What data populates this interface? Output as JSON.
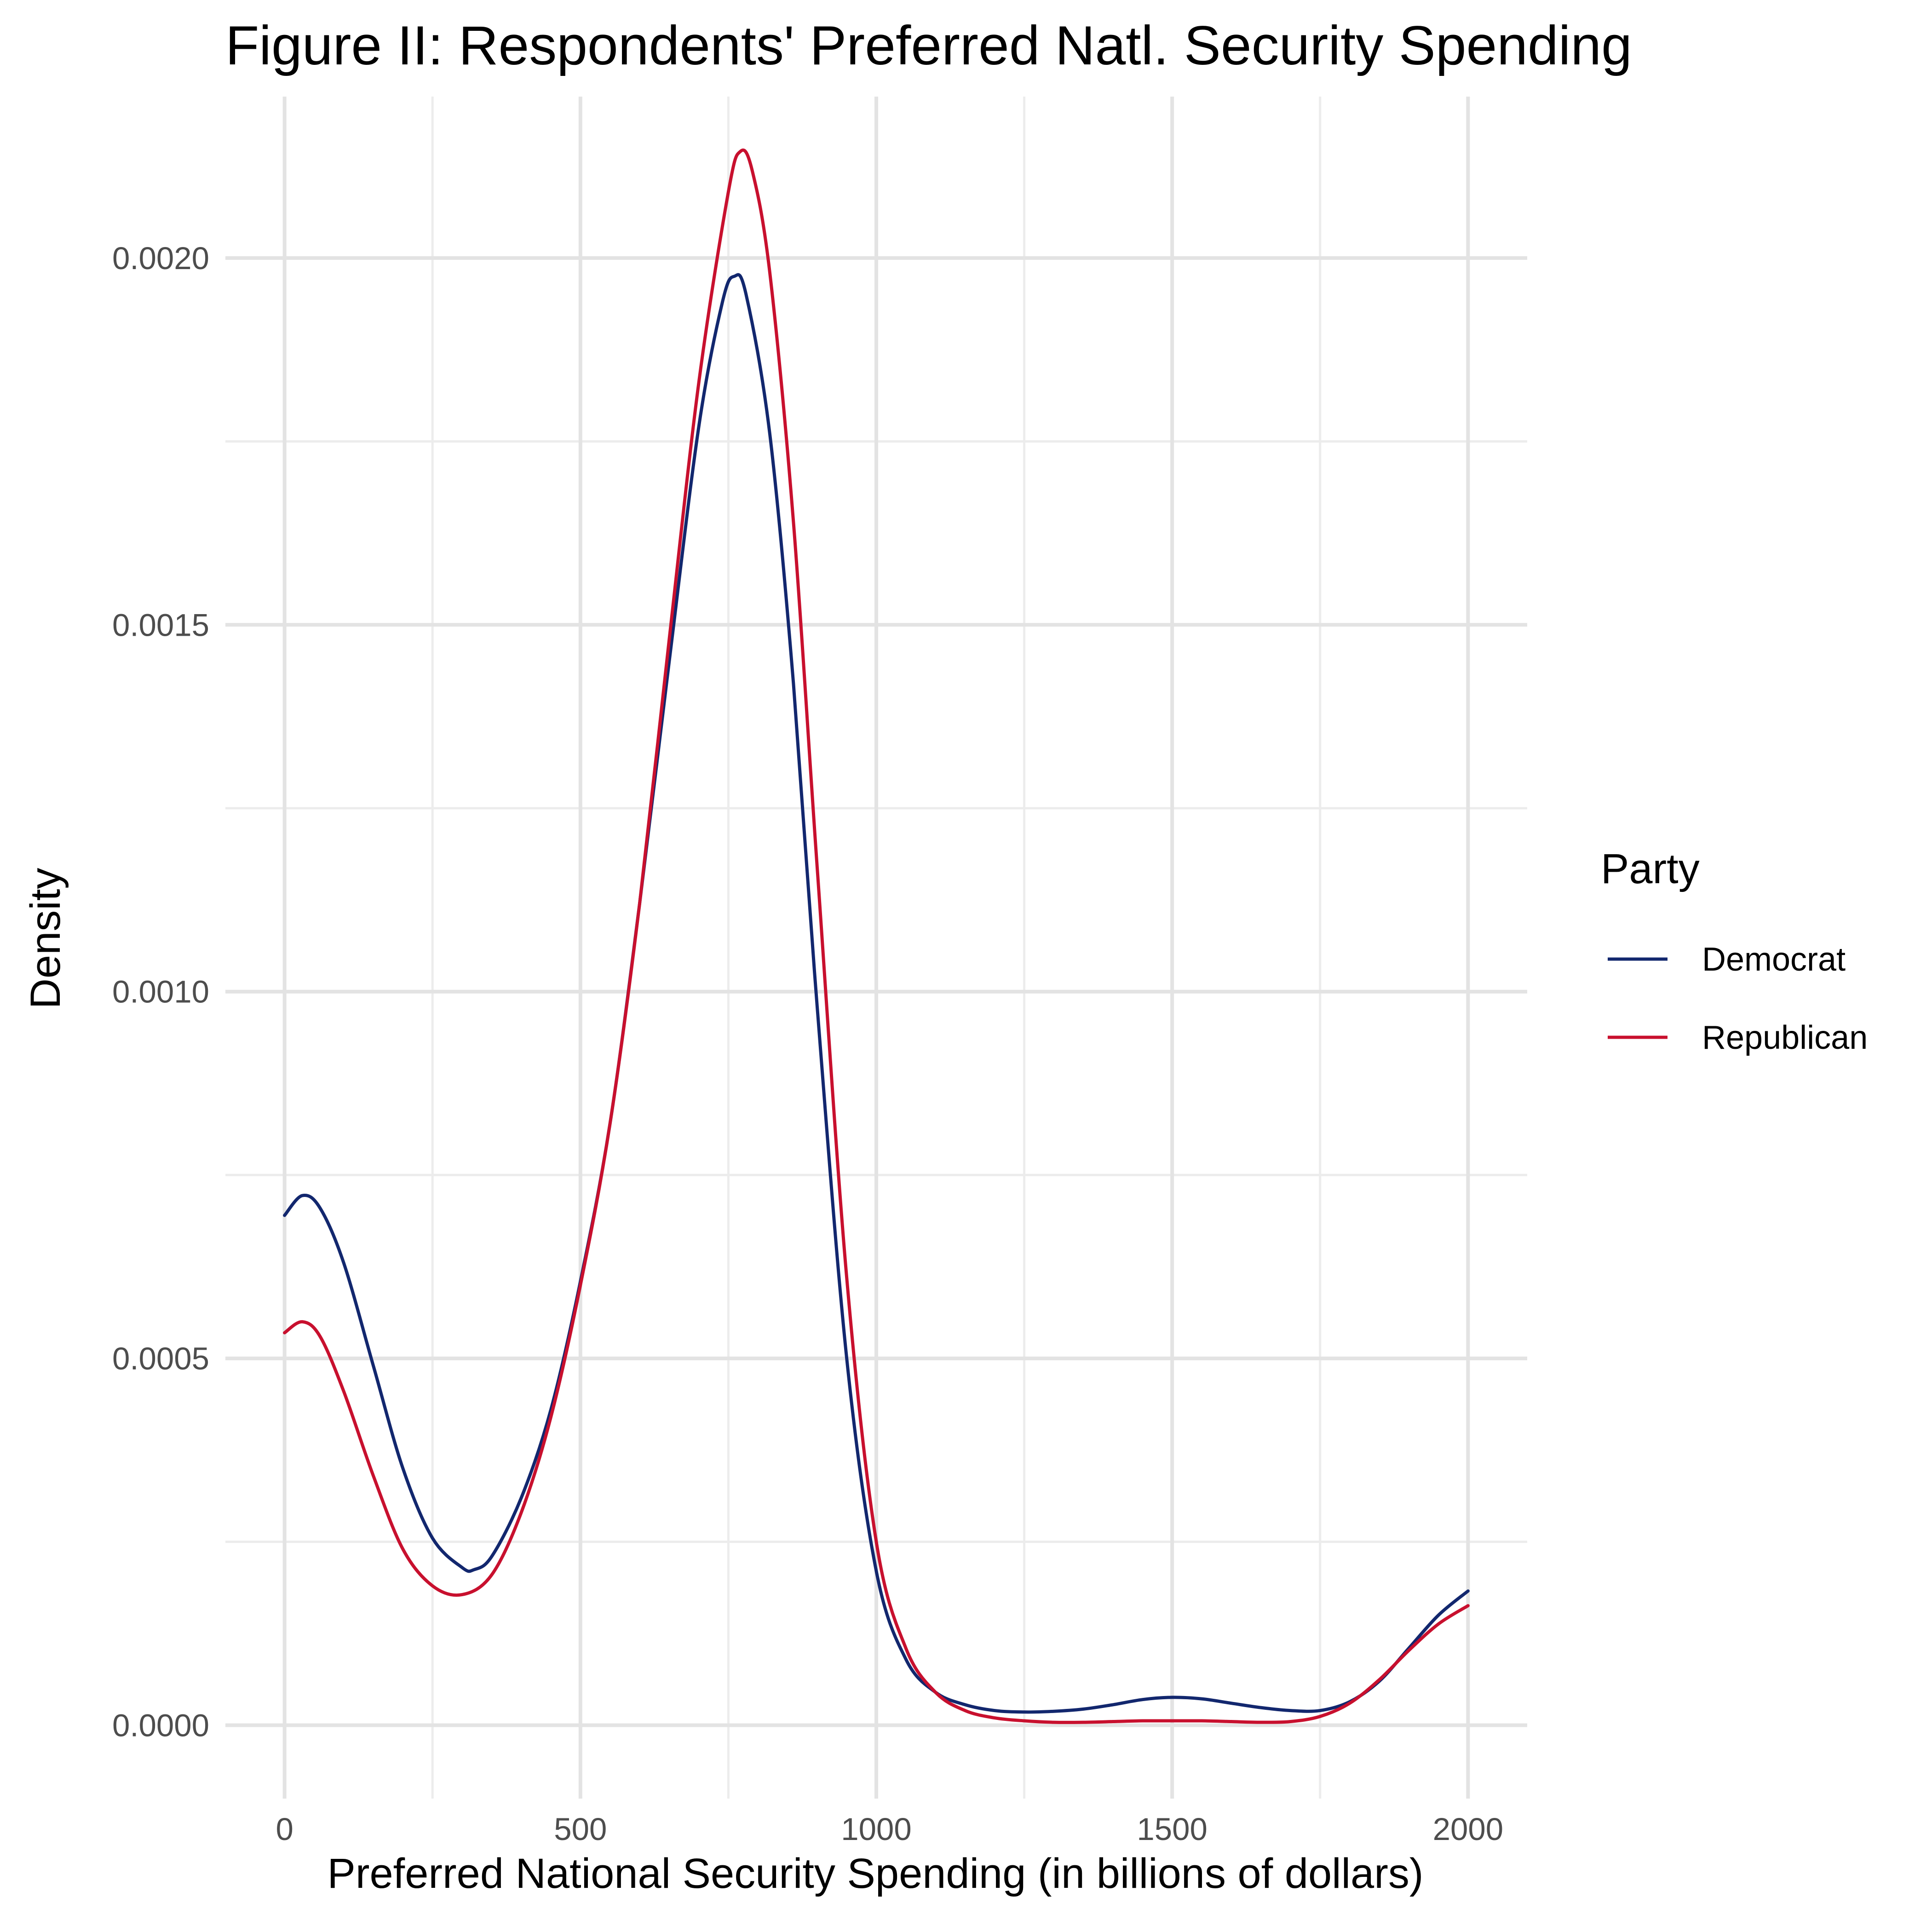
{
  "chart_data": {
    "type": "line",
    "title": "Figure II: Respondents' Preferred Natl. Security Spending",
    "xlabel": "Preferred National Security Spending (in billions of dollars)",
    "ylabel": "Density",
    "xlim": [
      -100,
      2100
    ],
    "ylim": [
      -0.0001,
      0.00222
    ],
    "x_ticks": [
      0,
      500,
      1000,
      1500,
      2000
    ],
    "x_tick_labels": [
      "0",
      "500",
      "1000",
      "1500",
      "2000"
    ],
    "y_ticks": [
      0.0,
      0.0005,
      0.001,
      0.0015,
      0.002
    ],
    "y_tick_labels": [
      "0.0000",
      "0.0005",
      "0.0010",
      "0.0015",
      "0.0020"
    ],
    "grid": true,
    "legend": {
      "title": "Party",
      "position": "right"
    },
    "series": [
      {
        "name": "Democrat",
        "color": "#12276e",
        "x": [
          0,
          30,
          60,
          100,
          150,
          200,
          250,
          300,
          320,
          350,
          400,
          450,
          500,
          550,
          600,
          650,
          700,
          740,
          760,
          780,
          820,
          860,
          900,
          950,
          1000,
          1050,
          1100,
          1150,
          1200,
          1250,
          1300,
          1350,
          1400,
          1450,
          1500,
          1550,
          1600,
          1650,
          1700,
          1750,
          1800,
          1850,
          1900,
          1950,
          2000
        ],
        "y": [
          0.000695,
          0.000722,
          0.000705,
          0.00063,
          0.00049,
          0.00035,
          0.000255,
          0.000215,
          0.000212,
          0.00023,
          0.00031,
          0.00043,
          0.000605,
          0.00082,
          0.00112,
          0.00145,
          0.00177,
          0.00194,
          0.001975,
          0.00195,
          0.00176,
          0.00142,
          0.00098,
          0.0005,
          0.00021,
          9e-05,
          4.5e-05,
          2.8e-05,
          2e-05,
          1.8e-05,
          1.9e-05,
          2.2e-05,
          2.8e-05,
          3.5e-05,
          3.8e-05,
          3.6e-05,
          3e-05,
          2.4e-05,
          2e-05,
          2e-05,
          3.2e-05,
          6e-05,
          0.000105,
          0.00015,
          0.000183
        ]
      },
      {
        "name": "Republican",
        "color": "#c8102e",
        "x": [
          0,
          30,
          60,
          100,
          150,
          200,
          250,
          300,
          350,
          400,
          450,
          500,
          550,
          600,
          650,
          700,
          750,
          770,
          790,
          820,
          860,
          900,
          950,
          1000,
          1050,
          1100,
          1150,
          1200,
          1250,
          1300,
          1350,
          1400,
          1450,
          1500,
          1550,
          1600,
          1650,
          1700,
          1750,
          1800,
          1850,
          1900,
          1950,
          2000
        ],
        "y": [
          0.000535,
          0.00055,
          0.00053,
          0.000455,
          0.00034,
          0.00024,
          0.00019,
          0.000178,
          0.000205,
          0.00029,
          0.00042,
          0.0006,
          0.00082,
          0.00112,
          0.00148,
          0.00183,
          0.00209,
          0.002145,
          0.00212,
          0.00198,
          0.00164,
          0.00117,
          0.00061,
          0.00025,
          0.000105,
          4.5e-05,
          2e-05,
          1e-05,
          6e-06,
          4e-06,
          4e-06,
          5e-06,
          6e-06,
          6e-06,
          6e-06,
          5e-06,
          4e-06,
          5e-06,
          1.2e-05,
          3e-05,
          6.2e-05,
          0.000102,
          0.000138,
          0.000163
        ]
      }
    ]
  }
}
